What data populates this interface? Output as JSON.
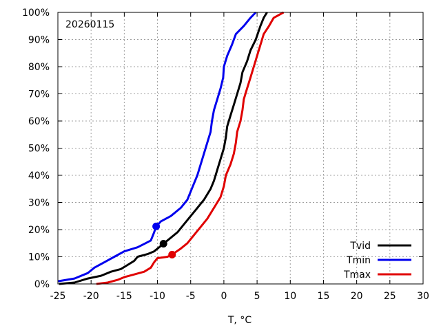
{
  "chart_data": {
    "type": "line",
    "annotation": "20260115",
    "xlabel": "T, °C",
    "ylabel": "",
    "xlim": [
      -25,
      30
    ],
    "ylim": [
      0,
      100
    ],
    "x_ticks": [
      "-25",
      "-20",
      "-15",
      "-10",
      "-5",
      "0",
      "5",
      "10",
      "15",
      "20",
      "25",
      "30"
    ],
    "y_ticks": [
      "0%",
      "10%",
      "20%",
      "30%",
      "40%",
      "50%",
      "60%",
      "70%",
      "80%",
      "90%",
      "100%"
    ],
    "grid": true,
    "legend_position": "bottom-right",
    "series": [
      {
        "name": "Tvid",
        "color": "#000000",
        "marker": {
          "x": -9.1,
          "y": 14.8
        },
        "points": [
          [
            -24.8,
            0
          ],
          [
            -22.5,
            0.5
          ],
          [
            -20.5,
            2
          ],
          [
            -18.5,
            3
          ],
          [
            -17,
            4.5
          ],
          [
            -15.5,
            5.5
          ],
          [
            -14.5,
            7
          ],
          [
            -13.5,
            8.5
          ],
          [
            -13,
            10
          ],
          [
            -11.5,
            11
          ],
          [
            -10.5,
            12
          ],
          [
            -9.5,
            14
          ],
          [
            -9.1,
            14.8
          ],
          [
            -8.5,
            16
          ],
          [
            -7,
            19
          ],
          [
            -6,
            22
          ],
          [
            -5,
            25
          ],
          [
            -4,
            28
          ],
          [
            -3,
            31
          ],
          [
            -2,
            35
          ],
          [
            -1.5,
            38
          ],
          [
            -1,
            42
          ],
          [
            -0.5,
            46
          ],
          [
            0,
            50
          ],
          [
            0.3,
            54
          ],
          [
            0.5,
            58
          ],
          [
            1,
            62
          ],
          [
            1.5,
            66
          ],
          [
            2,
            70
          ],
          [
            2.5,
            74
          ],
          [
            2.8,
            78
          ],
          [
            3.5,
            82
          ],
          [
            4,
            86
          ],
          [
            4.8,
            90
          ],
          [
            5.5,
            95
          ],
          [
            6,
            98
          ],
          [
            6.5,
            100
          ]
        ]
      },
      {
        "name": "Tmin",
        "color": "#0000ee",
        "marker": {
          "x": -10.2,
          "y": 21.2
        },
        "points": [
          [
            -25,
            1
          ],
          [
            -22.5,
            2
          ],
          [
            -20.5,
            4
          ],
          [
            -19.5,
            6
          ],
          [
            -18,
            8
          ],
          [
            -16.5,
            10
          ],
          [
            -15,
            12
          ],
          [
            -13,
            13.5
          ],
          [
            -11.8,
            15
          ],
          [
            -11,
            16
          ],
          [
            -10.5,
            19
          ],
          [
            -10.2,
            21.2
          ],
          [
            -9.5,
            23
          ],
          [
            -8,
            25
          ],
          [
            -6.5,
            28
          ],
          [
            -5.5,
            31
          ],
          [
            -5,
            34
          ],
          [
            -4.5,
            37
          ],
          [
            -4,
            40
          ],
          [
            -3.5,
            44
          ],
          [
            -3,
            48
          ],
          [
            -2.5,
            52
          ],
          [
            -2,
            56
          ],
          [
            -1.8,
            60
          ],
          [
            -1.5,
            64
          ],
          [
            -1,
            68
          ],
          [
            -0.5,
            72
          ],
          [
            -0.1,
            76
          ],
          [
            0,
            80
          ],
          [
            0.5,
            84
          ],
          [
            1.2,
            88
          ],
          [
            1.8,
            92
          ],
          [
            3,
            95
          ],
          [
            4,
            98
          ],
          [
            4.8,
            100
          ]
        ]
      },
      {
        "name": "Tmax",
        "color": "#e00000",
        "marker": {
          "x": -7.8,
          "y": 10.8
        },
        "points": [
          [
            -19.2,
            0
          ],
          [
            -17.5,
            0.5
          ],
          [
            -16,
            1.5
          ],
          [
            -15,
            2.5
          ],
          [
            -13.5,
            3.5
          ],
          [
            -12,
            4.5
          ],
          [
            -11,
            6
          ],
          [
            -10.5,
            8
          ],
          [
            -10,
            9.5
          ],
          [
            -8.5,
            10
          ],
          [
            -7.8,
            10.8
          ],
          [
            -6.5,
            13
          ],
          [
            -5.5,
            15
          ],
          [
            -4.5,
            18
          ],
          [
            -3.5,
            21
          ],
          [
            -2.5,
            24
          ],
          [
            -1.5,
            28
          ],
          [
            -0.5,
            32
          ],
          [
            0,
            36
          ],
          [
            0.3,
            40
          ],
          [
            1,
            44
          ],
          [
            1.5,
            48
          ],
          [
            1.8,
            52
          ],
          [
            2,
            56
          ],
          [
            2.5,
            60
          ],
          [
            2.8,
            64
          ],
          [
            3,
            68
          ],
          [
            3.5,
            72
          ],
          [
            4,
            76
          ],
          [
            4.5,
            80
          ],
          [
            5,
            84
          ],
          [
            5.5,
            88
          ],
          [
            6,
            92
          ],
          [
            6.8,
            95
          ],
          [
            7.5,
            98
          ],
          [
            9,
            100
          ]
        ]
      }
    ]
  }
}
